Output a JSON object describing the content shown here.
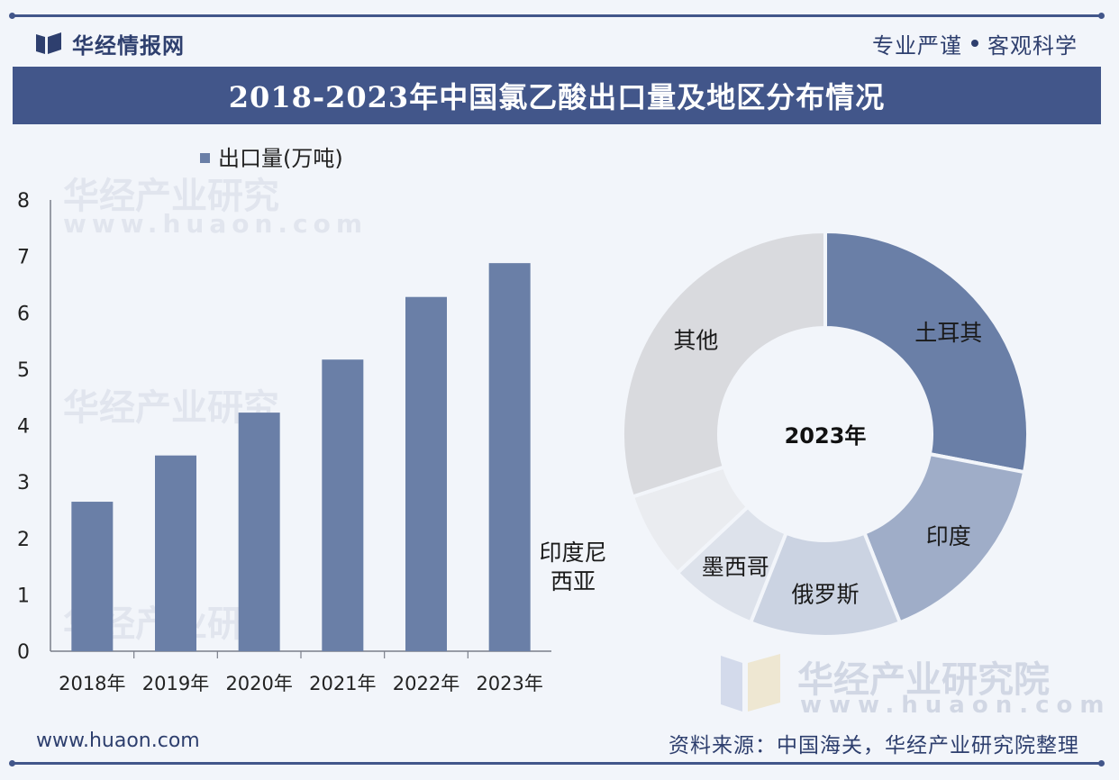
{
  "header": {
    "brand_name": "华经情报网",
    "slogan_left": "专业严谨",
    "slogan_right": "客观科学",
    "title": "2018-2023年中国氯乙酸出口量及地区分布情况"
  },
  "watermark": {
    "name": "华经产业研究院",
    "name_short": "华经产业研究",
    "url": "www.huaon.com"
  },
  "footer": {
    "url": "www.huaon.com",
    "source": "资料来源：中国海关，华经产业研究院整理"
  },
  "colors": {
    "bar": "#6a7fa7",
    "accent": "#42568a"
  },
  "chart_data": [
    {
      "type": "bar",
      "categories": [
        "2018年",
        "2019年",
        "2020年",
        "2021年",
        "2022年",
        "2023年"
      ],
      "series": [
        {
          "name": "出口量(万吨)",
          "values": [
            2.65,
            3.47,
            4.23,
            5.17,
            6.28,
            6.88
          ]
        }
      ],
      "ylim": [
        0,
        8
      ],
      "yticks": [
        "0",
        "1",
        "2",
        "3",
        "4",
        "5",
        "6",
        "7",
        "8"
      ],
      "legend": "top-left",
      "grid": false
    },
    {
      "type": "pie",
      "center_label": "2023年",
      "slices": [
        {
          "label": "土耳其",
          "value": 28,
          "color": "#6a7fa7",
          "text_color": "#1a1a1a"
        },
        {
          "label": "印度",
          "value": 16,
          "color": "#9fadc8",
          "text_color": "#1a1a1a"
        },
        {
          "label": "俄罗斯",
          "value": 12,
          "color": "#cbd3e2",
          "text_color": "#1a1a1a"
        },
        {
          "label": "墨西哥",
          "value": 7,
          "color": "#dde2eb",
          "text_color": "#1a1a1a"
        },
        {
          "label": "印度尼西亚",
          "label_lines": [
            "印度尼",
            "西亚"
          ],
          "value": 7,
          "color": "#eaecf0",
          "text_color": "#1a1a1a"
        },
        {
          "label": "其他",
          "value": 30,
          "color": "#d9dade",
          "text_color": "#1a1a1a"
        }
      ],
      "legend": "none"
    }
  ]
}
